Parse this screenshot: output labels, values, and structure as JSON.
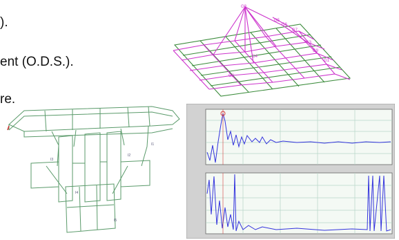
{
  "text_lines": [
    ").",
    "ent (O.D.S.).",
    "re."
  ],
  "colors": {
    "mesh_green": "#3c8c3c",
    "mesh_magenta": "#cc33cc",
    "frame_green": "#5a9a6a",
    "plot_trace": "#3333dd",
    "plot_marker": "#d43a3a",
    "plot_bg": "#f4f9f4",
    "plot_grid": "#b6d6c8",
    "plot_panel": "#d2d2d2"
  },
  "icons": [
    "ods-mesh-model",
    "structural-frame-model",
    "frequency-response-plot",
    "phase-plot"
  ]
}
